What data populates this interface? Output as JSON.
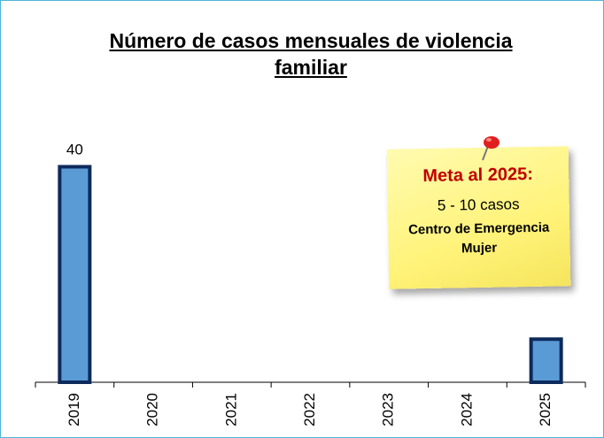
{
  "chart_data": {
    "type": "bar",
    "title": "Número de casos mensuales de violencia familiar",
    "categories": [
      "2019",
      "2020",
      "2021",
      "2022",
      "2023",
      "2024",
      "2025"
    ],
    "values": [
      40,
      null,
      null,
      null,
      null,
      null,
      8
    ],
    "value_labels": [
      "40",
      null,
      null,
      null,
      null,
      null,
      null
    ],
    "color": "#5b9bd5",
    "edge_color": "#0d2a5c",
    "ylim": [
      0,
      45
    ],
    "note": {
      "title": "Meta al 2025:",
      "line1": "5 - 10 casos",
      "line2": "Centro de Emergencia Mujer"
    }
  }
}
